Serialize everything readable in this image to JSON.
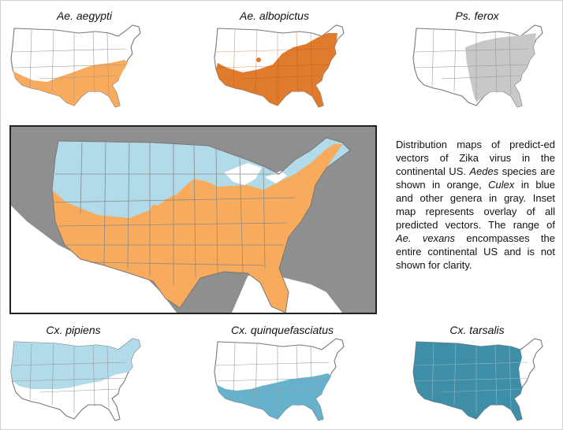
{
  "maps": {
    "aegypti": {
      "title": "Ae. aegypti",
      "color": "#f8ab5c"
    },
    "albopictus": {
      "title": "Ae. albopictus",
      "color": "#e07a2c"
    },
    "ferox": {
      "title": "Ps. ferox",
      "color": "#c8c8c8"
    },
    "pipiens": {
      "title": "Cx. pipiens",
      "color": "#b2dbea"
    },
    "quinquefasciatus": {
      "title": "Cx. quinquefasciatus",
      "color": "#66b2cc"
    },
    "tarsalis": {
      "title": "Cx. tarsalis",
      "color": "#3f8ea8"
    }
  },
  "inset": {
    "colors": {
      "culex": "#b2dbea",
      "aedes": "#f8ab5c",
      "land": "#8f8f8f",
      "water": "#ffffff"
    }
  },
  "description": {
    "p1": "Distribution maps of predict-ed vectors of Zika virus in the continental US. ",
    "aedes": "Aedes",
    "p2": " species are shown in orange, ",
    "culex": "Culex",
    "p3": " in blue and other genera in gray. Inset map represents overlay of all predicted vectors. The range of ",
    "vexans": "Ae. vexans",
    "p4": " encompasses the entire continental US and is not shown for clarity."
  }
}
